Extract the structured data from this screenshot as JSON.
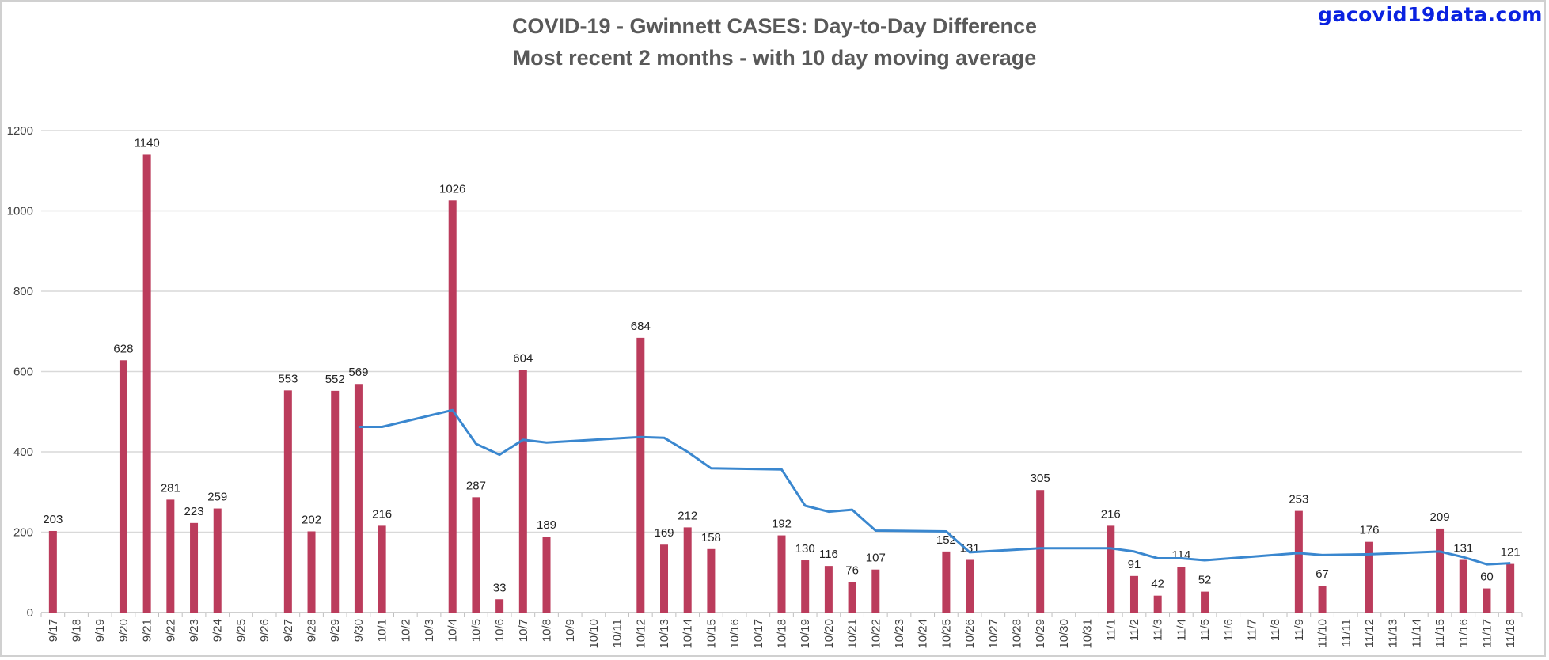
{
  "site": "gacovid19data.com",
  "chart_data": {
    "type": "bar+line",
    "title": "COVID-19 - Gwinnett CASES:  Day-to-Day Difference",
    "subtitle": "Most recent 2 months - with 10 day moving average",
    "ylim": [
      0,
      1200
    ],
    "yticks": [
      0,
      200,
      400,
      600,
      800,
      1000,
      1200
    ],
    "grid": true,
    "colors": {
      "bars": "#bb3c5c",
      "line": "#3a87cf",
      "grid": "#d9d9d9",
      "text": "#404040"
    },
    "categories": [
      "9/17",
      "9/18",
      "9/19",
      "9/20",
      "9/21",
      "9/22",
      "9/23",
      "9/24",
      "9/25",
      "9/26",
      "9/27",
      "9/28",
      "9/29",
      "9/30",
      "10/1",
      "10/2",
      "10/3",
      "10/4",
      "10/5",
      "10/6",
      "10/7",
      "10/8",
      "10/9",
      "10/10",
      "10/11",
      "10/12",
      "10/13",
      "10/14",
      "10/15",
      "10/16",
      "10/17",
      "10/18",
      "10/19",
      "10/20",
      "10/21",
      "10/22",
      "10/23",
      "10/24",
      "10/25",
      "10/26",
      "10/27",
      "10/28",
      "10/29",
      "10/30",
      "10/31",
      "11/1",
      "11/2",
      "11/3",
      "11/4",
      "11/5",
      "11/6",
      "11/7",
      "11/8",
      "11/9",
      "11/10",
      "11/11",
      "11/12",
      "11/13",
      "11/14",
      "11/15",
      "11/16",
      "11/17",
      "11/18"
    ],
    "series": [
      {
        "type": "bar",
        "values": [
          203,
          null,
          null,
          628,
          1140,
          281,
          223,
          259,
          null,
          null,
          553,
          202,
          552,
          569,
          216,
          null,
          null,
          1026,
          287,
          33,
          604,
          189,
          null,
          null,
          null,
          684,
          169,
          212,
          158,
          null,
          null,
          192,
          130,
          116,
          76,
          107,
          null,
          null,
          152,
          131,
          null,
          null,
          305,
          null,
          null,
          216,
          91,
          42,
          114,
          52,
          null,
          null,
          null,
          253,
          67,
          null,
          176,
          null,
          null,
          209,
          131,
          60,
          121
        ]
      },
      {
        "type": "line",
        "values": [
          null,
          null,
          null,
          null,
          null,
          null,
          null,
          null,
          null,
          null,
          null,
          null,
          null,
          462,
          462,
          null,
          null,
          504,
          420,
          393,
          430,
          423,
          null,
          null,
          null,
          437,
          435,
          400,
          359,
          null,
          null,
          356,
          266,
          251,
          256,
          204,
          null,
          null,
          202,
          150,
          null,
          null,
          160,
          null,
          null,
          160,
          152,
          135,
          135,
          130,
          null,
          null,
          null,
          148,
          143,
          null,
          145,
          null,
          null,
          152,
          138,
          120,
          123
        ]
      }
    ]
  }
}
